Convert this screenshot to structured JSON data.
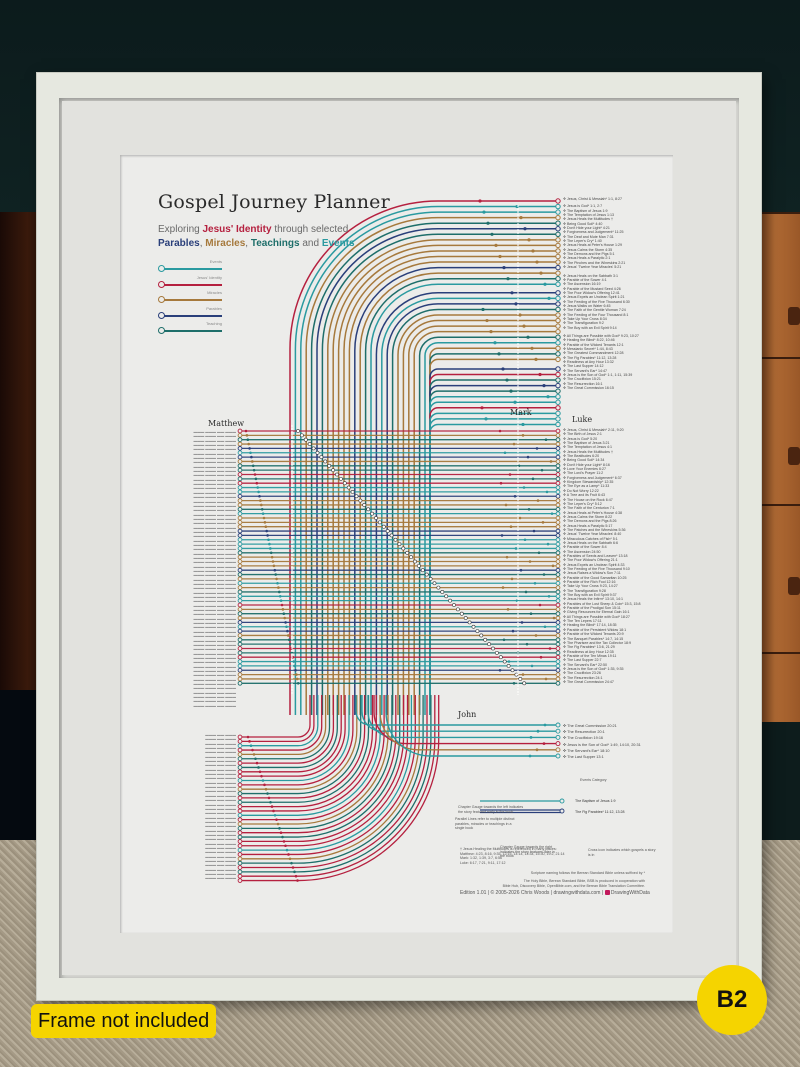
{
  "photo": {
    "badge_frame": "Frame not included",
    "badge_size": "B2"
  },
  "poster": {
    "title": "Gospel Journey Planner",
    "subtitle": {
      "line1_pre": "Exploring ",
      "line1_highlight": "Jesus' Identity",
      "line1_post": " through selected",
      "parables": "Parables",
      "sep1": ", ",
      "miracles": "Miracles",
      "sep2": ", ",
      "teachings": "Teachings",
      "sep3": " and ",
      "events": "Events"
    },
    "colors": {
      "events": "#2a9aa0",
      "identity": "#b5203f",
      "miracles": "#a6793c",
      "parables": "#2a3f7a",
      "teaching": "#1e6e6a"
    },
    "legend": [
      {
        "label": "Events",
        "key": "events"
      },
      {
        "label": "Jesus' Identity",
        "key": "identity"
      },
      {
        "label": "Miracles",
        "key": "miracles"
      },
      {
        "label": "Parables",
        "key": "parables"
      },
      {
        "label": "Teaching",
        "key": "teaching"
      }
    ],
    "books": {
      "matthew": "Matthew",
      "mark": "Mark",
      "luke": "Luke",
      "john": "John"
    },
    "mark_items": [
      "Jesus, Christ & Messiah* 1:1, 8:27",
      "Jesus is God* 1:1, 2:7",
      "The Baptism of Jesus 1:9",
      "The Temptation of Jesus 1:13",
      "Jesus Heals the Multitudes †",
      "Being Good Soil* 4:40",
      "Don't Hide your Light* 4:21",
      "Forgiveness and Judgement* 11:25",
      "The Deaf and Mute Man 7:31",
      "The Leper's Cry* 1:40",
      "Jesus Heals at Peter's House 1:29",
      "Jesus Calms the Storm 4:35",
      "The Demons and the Pigs 5:1",
      "Jesus Heals a Paralytic 2:1",
      "The Pinches and the Wineskins 2:21",
      "Jesus' 'Twelve Year Miracles' 5:21",
      "Jesus Heals on the Sabbath 3:1",
      "Parable of the Sower 4:1",
      "The Ascension 16:19",
      "Parable of the Mustard Seed 4:26",
      "The Poor Widow's Offering 12:41",
      "Jesus Expels an Unclean Spirit 1:21",
      "The Feeding of the Five Thousand 6:30",
      "Jesus Walks on Water 6:45",
      "The Faith of the Gentile Woman 7:24",
      "The Feeding of the Four Thousand 8:1",
      "Take Up Your Cross 8:34",
      "The Transfiguration 9:2",
      "The Boy with an Evil Spirit 9:14",
      "All Things are Possible with God* 9:23, 10:27",
      "Healing the Blind* 8:22, 10:46",
      "Parable of the Wicked Tenants 12:1",
      "Messianic Secret* 1:44, 8:43",
      "The Greatest Commandment 12:28",
      "The Fig Parables* 11:12, 13:28",
      "Readiness at Any Hour 13:32",
      "The Last Supper 14:12",
      "The Servant's Ear* 14:47",
      "Jesus is the Son of God* 1:1, 1:11, 15:39",
      "The Crucifixion 15:21",
      "The Resurrection 16:1",
      "The Great Commission 16:15"
    ],
    "luke_items": [
      "Jesus, Christ & Messiah* 2:11, 9:20",
      "The Birth of Jesus 2:1",
      "Jesus is God* 5:20",
      "The Baptism of Jesus 3:21",
      "The Temptation of Jesus 4:1",
      "Jesus Heals the Multitudes †",
      "The Beatitudes 6:20",
      "Being Good Soil* 14:34",
      "Don't Hide your Light* 8:16",
      "Love Your Enemies 6:27",
      "The Lord's Prayer 11:2",
      "Forgiveness and Judgement* 6:37",
      "Kingdom Stewardship* 12:35",
      "The Eye as a Lamp* 11:33",
      "Do Not Worry 12:22",
      "A Tree and its Fruit 6:43",
      "The House on the Rock 6:47",
      "The Leper's Cry* 5:12",
      "The Faith of the Centurion 7:1",
      "Jesus Heals at Peter's House 4:38",
      "Jesus Calms the Storm 8:22",
      "The Demons and the Pigs 8:26",
      "Jesus Heals a Paralytic 5:17",
      "The Patches and the Wineskins 5:36",
      "Jesus' 'Twelve Year Miracles' 8:40",
      "Miraculous Catches of Fish* 5:1",
      "Jesus Heals on the Sabbath 6:6",
      "Parable of the Sower 8:4",
      "The Ascension 24:50",
      "Parables of Seeds and Leaven* 13:18",
      "The Poor Widow's Offering 21:1",
      "Jesus Expels an Unclean Spirit 4:33",
      "The Feeding of the Five Thousand 9:10",
      "Jesus Raises a Widow's Son 7:11",
      "Parable of the Good Samaritan 10:25",
      "Parable of the Rich Fool 12:16",
      "Take Up Your Cross 9:23, 14:27",
      "The Transfiguration 9:28",
      "The Boy with an Evil Spirit 9:37",
      "Jesus Heals the Infirm* 13:10, 14:1",
      "Parables of the Lost Sheep & Coin* 15:3, 15:8",
      "Parable of the Prodigal Son 15:11",
      "Giving Resources for Eternal Gain 16:1",
      "All Things are Possible with God* 18:27",
      "The Ten Lepers 17:11",
      "Healing the Blind* 17:14, 18:35",
      "Parable of the Persistent Widow 18:1",
      "Parable of the Wicked Tenants 20:9",
      "The Banquet Parables* 14:7, 14:15",
      "The Pharisee and the Tax Collector 18:9",
      "The Fig Parables* 13:6, 21:29",
      "Readiness at Any Hour 12:35",
      "Parable of the Ten Minas 19:11",
      "The Last Supper 22:7",
      "The Servant's Ear* 22:50",
      "Jesus is the Son of God* 1:35, 9:35",
      "The Crucifixion 23:26",
      "The Resurrection 24:1",
      "The Great Commission 24:47"
    ],
    "john_items": [
      "The Great Commission 20:21",
      "The Resurrection 20:1",
      "The Crucifixion 19:16",
      "Jesus is the Son of God* 1:49, 14:10, 20:31",
      "The Servant's Ear* 18:10",
      "The Last Supper 13:1"
    ],
    "key": {
      "note_events_category": "Events Category",
      "example1": "The Baptism of Jesus 1:9",
      "example2": "The Fig Parables* 11:12, 13:28",
      "gauge_left": "Chapter Gauge towards the left indicates the story featured early in the book",
      "parallel_lines": "Parallel Lines refer to multiple distinct parables, miracles or teachings in a single book",
      "gauge_right": "Chapter Gauge towards the right indicates the story features later in the book",
      "cross_icon": "Cross icon indicates which gospels a story is in"
    },
    "footnote": {
      "title": "† Jesus Healing the Multitudes is referenced in many places:",
      "matthew": "Matthew: 4:23, 8:16, 9:35, 12:15, 14:14, 14:34, 15:30, 19:2, 21:14",
      "mark": "Mark: 1:32, 1:39, 3:7, 6:56",
      "luke": "Luke: 6:17, 7:21, 9:11, 17:12"
    },
    "scripture_note": "Scripture naming follows the Berean Standard Bible unless suffixed by *",
    "bible_credit_1": "The Holy Bible, Berean Standard Bible, BSB is produced in cooperation with",
    "bible_credit_2": "Bible Hub, Discovery Bible, OpenBible.com, and the Berean Bible Translation Committee.",
    "edition": "Edition 1.01  |  © 2005-2026 Chris Woods  |  drawingwithdata.com  |",
    "brand": "DrawingWithData"
  }
}
